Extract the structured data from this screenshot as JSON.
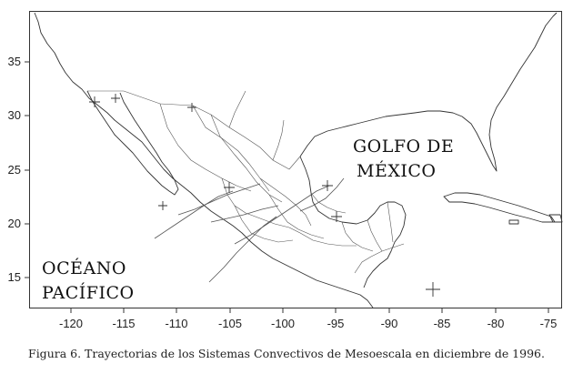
{
  "map": {
    "lon_ticks": [
      "-120",
      "-115",
      "-110",
      "-105",
      "-100",
      "-95",
      "-90",
      "-85",
      "-80",
      "-75"
    ],
    "lat_ticks": [
      "35",
      "30",
      "25",
      "20",
      "15"
    ],
    "gulf_label_line1": "GOLFO DE",
    "gulf_label_line2": "MÉXICO",
    "pacific_label_line1": "OCÉANO",
    "pacific_label_line2": "PACÍFICO",
    "colors": {
      "coast": "#333333",
      "frame": "#333333",
      "tracks": "#555555"
    }
  },
  "caption": "Figura 6. Trayectorias de los Sistemas Convectivos de Mesoescala en diciembre de 1996."
}
